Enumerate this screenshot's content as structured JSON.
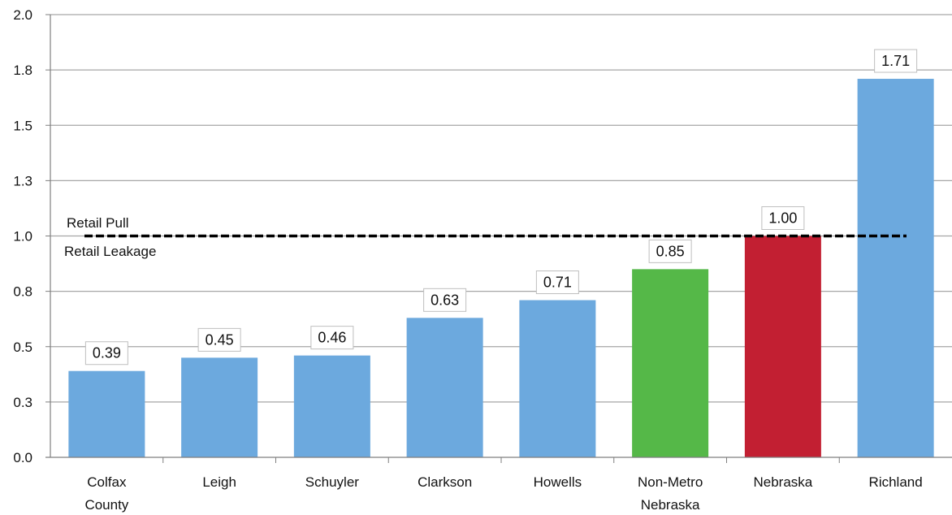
{
  "chart_data": {
    "type": "bar",
    "categories": [
      [
        "Colfax",
        "County"
      ],
      [
        "Leigh"
      ],
      [
        "Schuyler"
      ],
      [
        "Clarkson"
      ],
      [
        "Howells"
      ],
      [
        "Non-Metro",
        "Nebraska"
      ],
      [
        "Nebraska"
      ],
      [
        "Richland"
      ]
    ],
    "values": [
      0.39,
      0.45,
      0.46,
      0.63,
      0.71,
      0.85,
      1.0,
      1.71
    ],
    "value_labels": [
      "0.39",
      "0.45",
      "0.46",
      "0.63",
      "0.71",
      "0.85",
      "1.00",
      "1.71"
    ],
    "bar_colors": [
      "#6CA9DE",
      "#6CA9DE",
      "#6CA9DE",
      "#6CA9DE",
      "#6CA9DE",
      "#55B848",
      "#C21F32",
      "#6CA9DE"
    ],
    "ylim": [
      0,
      2.0
    ],
    "y_ticks": [
      0,
      0.25,
      0.5,
      0.75,
      1.0,
      1.25,
      1.5,
      1.75,
      2.0
    ],
    "y_tick_labels": [
      "0.0",
      "0.3",
      "0.5",
      "0.8",
      "1.0",
      "1.3",
      "1.5",
      "1.8",
      "2.0"
    ],
    "grid": true,
    "reference_line": {
      "value": 1.0,
      "label_above": "Retail Pull",
      "label_below": "Retail Leakage",
      "style": "dashed",
      "color": "#000000"
    },
    "title": "",
    "xlabel": "",
    "ylabel": ""
  }
}
